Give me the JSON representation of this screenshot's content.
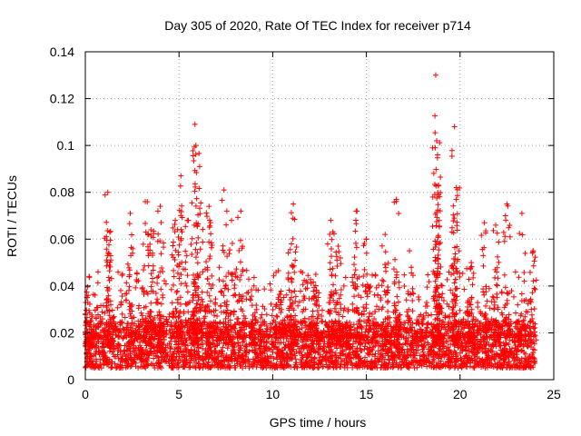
{
  "chart_data": {
    "type": "scatter",
    "title": "Day 305 of 2020, Rate Of TEC Index for receiver p714",
    "xlabel": "GPS time / hours",
    "ylabel": "ROTI / TECUs",
    "xlim": [
      0,
      25
    ],
    "ylim": [
      0,
      0.14
    ],
    "x_ticks": [
      0,
      5,
      10,
      15,
      20,
      25
    ],
    "y_ticks": [
      0,
      0.02,
      0.04,
      0.06,
      0.08,
      0.1,
      0.12,
      0.14
    ],
    "x_tick_labels": [
      "0",
      "5",
      "10",
      "15",
      "20",
      "25"
    ],
    "y_tick_labels": [
      "0",
      "0.02",
      "0.04",
      "0.06",
      "0.08",
      "0.1",
      "0.12",
      "0.14"
    ],
    "grid": true,
    "marker": "+",
    "color": "#ff0000",
    "series": [
      {
        "name": "ROTI",
        "x_range": [
          0,
          24
        ],
        "baseline_range": [
          0.005,
          0.025
        ],
        "spikes": [
          {
            "x": 0.15,
            "y": 0.036
          },
          {
            "x": 1.2,
            "y": 0.08
          },
          {
            "x": 1.3,
            "y": 0.063
          },
          {
            "x": 2.4,
            "y": 0.071
          },
          {
            "x": 3.2,
            "y": 0.076
          },
          {
            "x": 3.5,
            "y": 0.064
          },
          {
            "x": 4.0,
            "y": 0.074
          },
          {
            "x": 4.8,
            "y": 0.068
          },
          {
            "x": 5.1,
            "y": 0.087
          },
          {
            "x": 5.5,
            "y": 0.068
          },
          {
            "x": 5.85,
            "y": 0.109
          },
          {
            "x": 5.9,
            "y": 0.1
          },
          {
            "x": 6.1,
            "y": 0.091
          },
          {
            "x": 6.6,
            "y": 0.074
          },
          {
            "x": 7.4,
            "y": 0.081
          },
          {
            "x": 7.8,
            "y": 0.068
          },
          {
            "x": 8.3,
            "y": 0.072
          },
          {
            "x": 11.1,
            "y": 0.075
          },
          {
            "x": 11.0,
            "y": 0.058
          },
          {
            "x": 13.1,
            "y": 0.068
          },
          {
            "x": 13.5,
            "y": 0.057
          },
          {
            "x": 14.5,
            "y": 0.072
          },
          {
            "x": 15.0,
            "y": 0.06
          },
          {
            "x": 16.6,
            "y": 0.077
          },
          {
            "x": 16.0,
            "y": 0.062
          },
          {
            "x": 18.7,
            "y": 0.13
          },
          {
            "x": 18.75,
            "y": 0.102
          },
          {
            "x": 18.8,
            "y": 0.096
          },
          {
            "x": 18.85,
            "y": 0.083
          },
          {
            "x": 19.7,
            "y": 0.108
          },
          {
            "x": 19.8,
            "y": 0.082
          },
          {
            "x": 19.7,
            "y": 0.069
          },
          {
            "x": 21.3,
            "y": 0.067
          },
          {
            "x": 21.9,
            "y": 0.066
          },
          {
            "x": 22.5,
            "y": 0.075
          },
          {
            "x": 23.3,
            "y": 0.071
          },
          {
            "x": 23.9,
            "y": 0.055
          },
          {
            "x": 20.6,
            "y": 0.05
          },
          {
            "x": 9.0,
            "y": 0.04
          },
          {
            "x": 10.3,
            "y": 0.035
          },
          {
            "x": 12.3,
            "y": 0.045
          },
          {
            "x": 17.3,
            "y": 0.055
          }
        ]
      }
    ]
  }
}
